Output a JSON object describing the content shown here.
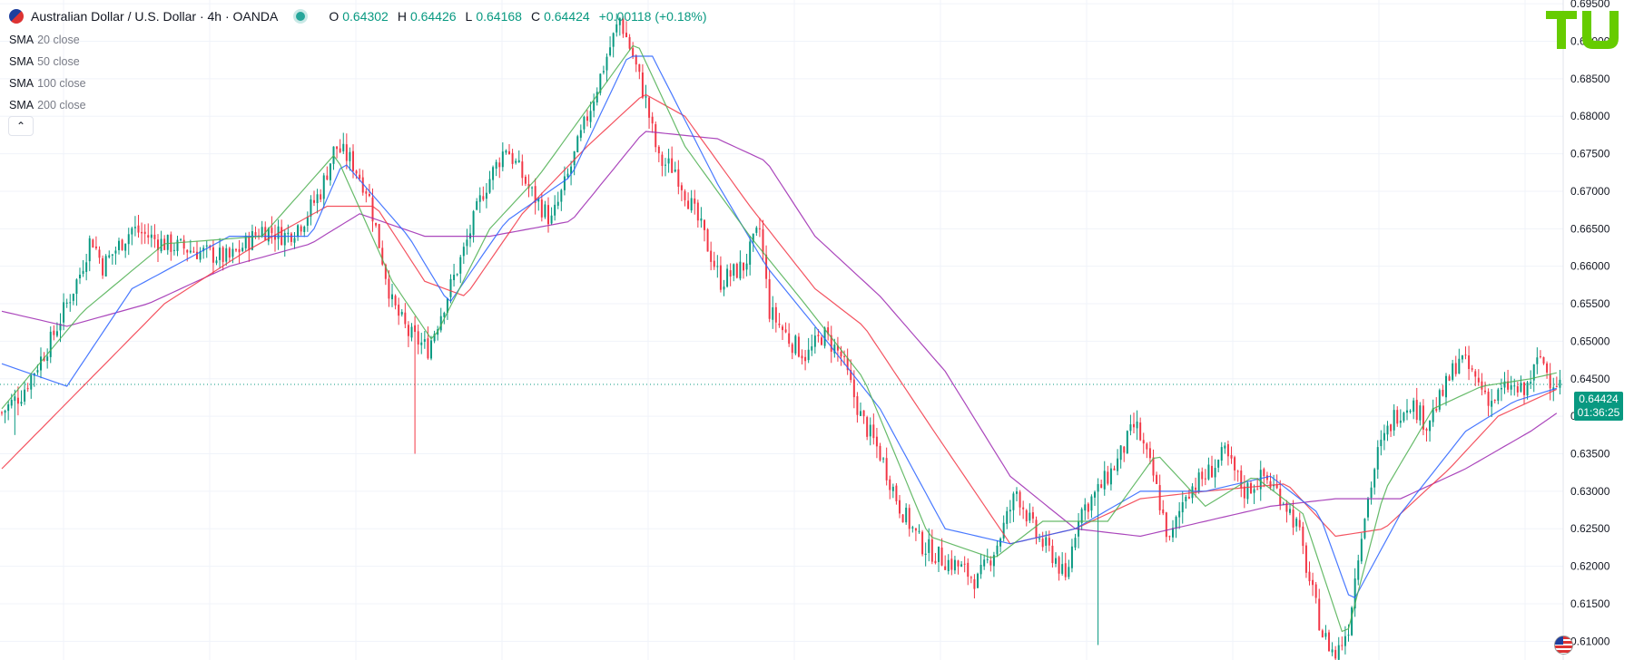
{
  "header": {
    "title": "Australian Dollar / U.S. Dollar · 4h · OANDA",
    "ohlc": [
      {
        "k": "O",
        "v": "0.64302"
      },
      {
        "k": "H",
        "v": "0.64426"
      },
      {
        "k": "L",
        "v": "0.64168"
      },
      {
        "k": "C",
        "v": "0.64424"
      }
    ],
    "change": "+0.00118 (+0.18%)"
  },
  "studies": [
    {
      "name": "SMA",
      "arg": "20 close"
    },
    {
      "name": "SMA",
      "arg": "50 close"
    },
    {
      "name": "SMA",
      "arg": "100 close"
    },
    {
      "name": "SMA",
      "arg": "200 close"
    }
  ],
  "collapse_icon": "chevron-up-icon",
  "logo_text": "TU",
  "price_tag": {
    "price": "0.64424",
    "countdown": "01:36:25"
  },
  "colors": {
    "up": "#089981",
    "down": "#f23645",
    "sma20": "#4caf50",
    "sma50": "#2962ff",
    "sma100": "#f23645",
    "sma200": "#9c27b0",
    "logo": "#66cc00",
    "last_price_line": "#089981"
  },
  "chart_data": {
    "type": "candlestick",
    "symbol": "AUDUSD",
    "interval": "4h",
    "ylim": [
      0.6075,
      0.6955
    ],
    "y_ticks": [
      "0.61000",
      "0.61500",
      "0.62000",
      "0.62500",
      "0.63000",
      "0.63500",
      "0.64000",
      "0.64500",
      "0.65000",
      "0.65500",
      "0.66000",
      "0.66500",
      "0.67000",
      "0.67500",
      "0.68000",
      "0.68500",
      "0.69000",
      "0.69500"
    ],
    "y_tick_values": [
      0.61,
      0.615,
      0.62,
      0.625,
      0.63,
      0.635,
      0.64,
      0.645,
      0.65,
      0.655,
      0.66,
      0.665,
      0.67,
      0.675,
      0.68,
      0.685,
      0.69,
      0.695
    ],
    "last_price": 0.64424,
    "grid": true,
    "candle_count": 480,
    "close_path": [
      [
        0,
        0.6405
      ],
      [
        12,
        0.643
      ],
      [
        30,
        0.65
      ],
      [
        48,
        0.659
      ],
      [
        55,
        0.664
      ],
      [
        62,
        0.66
      ],
      [
        80,
        0.665
      ],
      [
        100,
        0.663
      ],
      [
        120,
        0.662
      ],
      [
        140,
        0.661
      ],
      [
        160,
        0.665
      ],
      [
        175,
        0.664
      ],
      [
        185,
        0.666
      ],
      [
        196,
        0.67
      ],
      [
        205,
        0.676
      ],
      [
        215,
        0.674
      ],
      [
        225,
        0.67
      ],
      [
        232,
        0.663
      ],
      [
        240,
        0.655
      ],
      [
        250,
        0.651
      ],
      [
        262,
        0.649
      ],
      [
        272,
        0.655
      ],
      [
        284,
        0.662
      ],
      [
        296,
        0.67
      ],
      [
        310,
        0.676
      ],
      [
        325,
        0.67
      ],
      [
        338,
        0.666
      ],
      [
        348,
        0.672
      ],
      [
        360,
        0.68
      ],
      [
        372,
        0.688
      ],
      [
        380,
        0.693
      ],
      [
        388,
        0.688
      ],
      [
        396,
        0.682
      ],
      [
        404,
        0.674
      ],
      [
        414,
        0.673
      ],
      [
        430,
        0.665
      ],
      [
        442,
        0.658
      ],
      [
        456,
        0.66
      ],
      [
        466,
        0.665
      ],
      [
        472,
        0.654
      ],
      [
        485,
        0.65
      ],
      [
        495,
        0.648
      ],
      [
        505,
        0.651
      ],
      [
        516,
        0.648
      ],
      [
        528,
        0.64
      ],
      [
        540,
        0.635
      ],
      [
        552,
        0.628
      ],
      [
        565,
        0.623
      ],
      [
        578,
        0.621
      ],
      [
        588,
        0.62
      ],
      [
        600,
        0.618
      ],
      [
        612,
        0.623
      ],
      [
        624,
        0.63
      ],
      [
        636,
        0.624
      ],
      [
        648,
        0.621
      ],
      [
        654,
        0.618
      ],
      [
        662,
        0.627
      ],
      [
        674,
        0.63
      ],
      [
        686,
        0.634
      ],
      [
        697,
        0.639
      ],
      [
        708,
        0.632
      ],
      [
        718,
        0.623
      ],
      [
        728,
        0.63
      ],
      [
        740,
        0.632
      ],
      [
        752,
        0.635
      ],
      [
        764,
        0.63
      ],
      [
        776,
        0.632
      ],
      [
        788,
        0.629
      ],
      [
        797,
        0.625
      ],
      [
        804,
        0.618
      ],
      [
        812,
        0.611
      ],
      [
        820,
        0.608
      ],
      [
        828,
        0.612
      ],
      [
        836,
        0.625
      ],
      [
        846,
        0.635
      ],
      [
        856,
        0.64
      ],
      [
        866,
        0.642
      ],
      [
        876,
        0.639
      ],
      [
        886,
        0.643
      ],
      [
        896,
        0.648
      ],
      [
        906,
        0.645
      ],
      [
        916,
        0.642
      ],
      [
        926,
        0.644
      ],
      [
        936,
        0.643
      ],
      [
        946,
        0.648
      ],
      [
        952,
        0.645
      ],
      [
        960,
        0.6442
      ]
    ],
    "spikes": [
      {
        "i": 254,
        "low": 0.635
      },
      {
        "i": 673,
        "low": 0.6095
      },
      {
        "i": 818,
        "low": 0.608
      },
      {
        "i": 8,
        "low": 0.6375
      }
    ],
    "sma20_path": [
      [
        0,
        0.641
      ],
      [
        50,
        0.654
      ],
      [
        100,
        0.663
      ],
      [
        160,
        0.664
      ],
      [
        205,
        0.675
      ],
      [
        240,
        0.658
      ],
      [
        265,
        0.65
      ],
      [
        300,
        0.665
      ],
      [
        330,
        0.672
      ],
      [
        370,
        0.684
      ],
      [
        390,
        0.69
      ],
      [
        420,
        0.676
      ],
      [
        460,
        0.664
      ],
      [
        490,
        0.656
      ],
      [
        530,
        0.645
      ],
      [
        570,
        0.624
      ],
      [
        610,
        0.621
      ],
      [
        640,
        0.626
      ],
      [
        680,
        0.626
      ],
      [
        710,
        0.635
      ],
      [
        740,
        0.628
      ],
      [
        770,
        0.632
      ],
      [
        800,
        0.627
      ],
      [
        826,
        0.61
      ],
      [
        850,
        0.63
      ],
      [
        880,
        0.641
      ],
      [
        910,
        0.644
      ],
      [
        940,
        0.645
      ],
      [
        960,
        0.646
      ]
    ],
    "sma50_path": [
      [
        0,
        0.647
      ],
      [
        40,
        0.644
      ],
      [
        80,
        0.657
      ],
      [
        140,
        0.664
      ],
      [
        190,
        0.664
      ],
      [
        210,
        0.674
      ],
      [
        250,
        0.664
      ],
      [
        275,
        0.655
      ],
      [
        310,
        0.666
      ],
      [
        350,
        0.672
      ],
      [
        385,
        0.688
      ],
      [
        400,
        0.688
      ],
      [
        440,
        0.671
      ],
      [
        470,
        0.66
      ],
      [
        500,
        0.652
      ],
      [
        540,
        0.641
      ],
      [
        580,
        0.625
      ],
      [
        620,
        0.623
      ],
      [
        660,
        0.625
      ],
      [
        700,
        0.63
      ],
      [
        740,
        0.63
      ],
      [
        780,
        0.632
      ],
      [
        810,
        0.627
      ],
      [
        830,
        0.615
      ],
      [
        860,
        0.627
      ],
      [
        900,
        0.638
      ],
      [
        930,
        0.642
      ],
      [
        960,
        0.644
      ]
    ],
    "sma100_path": [
      [
        0,
        0.633
      ],
      [
        50,
        0.644
      ],
      [
        100,
        0.655
      ],
      [
        150,
        0.662
      ],
      [
        200,
        0.668
      ],
      [
        230,
        0.668
      ],
      [
        260,
        0.658
      ],
      [
        285,
        0.656
      ],
      [
        320,
        0.667
      ],
      [
        360,
        0.676
      ],
      [
        395,
        0.683
      ],
      [
        420,
        0.68
      ],
      [
        460,
        0.668
      ],
      [
        500,
        0.657
      ],
      [
        530,
        0.652
      ],
      [
        570,
        0.639
      ],
      [
        620,
        0.623
      ],
      [
        660,
        0.625
      ],
      [
        700,
        0.629
      ],
      [
        740,
        0.63
      ],
      [
        790,
        0.631
      ],
      [
        820,
        0.624
      ],
      [
        850,
        0.625
      ],
      [
        890,
        0.633
      ],
      [
        920,
        0.64
      ],
      [
        960,
        0.644
      ]
    ],
    "sma200_path": [
      [
        0,
        0.654
      ],
      [
        40,
        0.652
      ],
      [
        90,
        0.655
      ],
      [
        140,
        0.66
      ],
      [
        190,
        0.663
      ],
      [
        220,
        0.667
      ],
      [
        260,
        0.664
      ],
      [
        300,
        0.664
      ],
      [
        350,
        0.666
      ],
      [
        395,
        0.678
      ],
      [
        440,
        0.677
      ],
      [
        470,
        0.674
      ],
      [
        500,
        0.664
      ],
      [
        540,
        0.656
      ],
      [
        580,
        0.646
      ],
      [
        620,
        0.632
      ],
      [
        660,
        0.625
      ],
      [
        700,
        0.624
      ],
      [
        740,
        0.626
      ],
      [
        780,
        0.628
      ],
      [
        820,
        0.629
      ],
      [
        860,
        0.629
      ],
      [
        900,
        0.633
      ],
      [
        940,
        0.638
      ],
      [
        960,
        0.641
      ]
    ]
  }
}
